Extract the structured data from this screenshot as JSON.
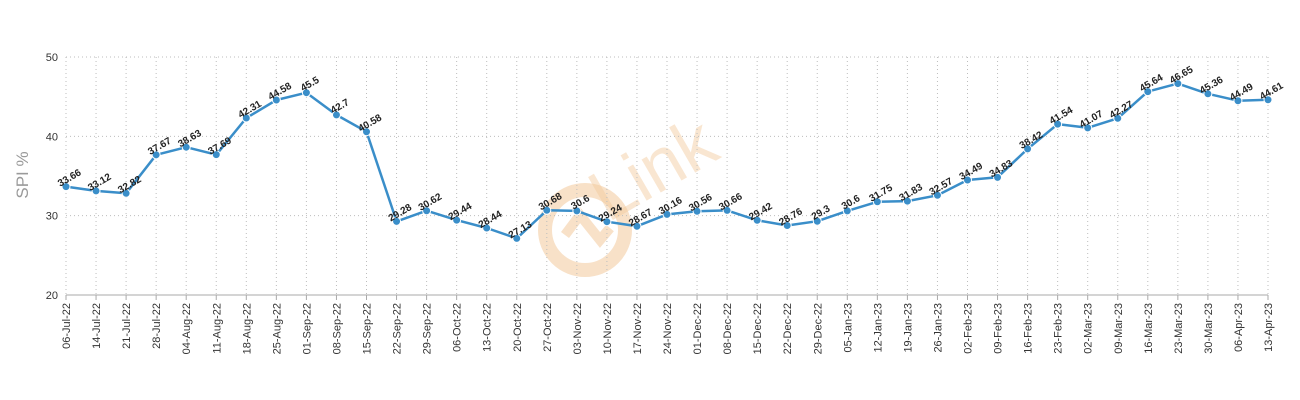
{
  "chart_data": {
    "type": "line",
    "title": "",
    "xlabel": "",
    "ylabel": "SPI %",
    "ylim": [
      20,
      50
    ],
    "yticks": [
      20,
      30,
      40,
      50
    ],
    "grid": "vertical dotted + horizontal dotted",
    "legend": "none",
    "series_color": "#3a8ec9",
    "categories": [
      "06-Jul-22",
      "14-Jul-22",
      "21-Jul-22",
      "28-Jul-22",
      "04-Aug-22",
      "11-Aug-22",
      "18-Aug-22",
      "25-Aug-22",
      "01-Sep-22",
      "08-Sep-22",
      "15-Sep-22",
      "22-Sep-22",
      "29-Sep-22",
      "06-Oct-22",
      "13-Oct-22",
      "20-Oct-22",
      "27-Oct-22",
      "03-Nov-22",
      "10-Nov-22",
      "17-Nov-22",
      "24-Nov-22",
      "01-Dec-22",
      "08-Dec-22",
      "15-Dec-22",
      "22-Dec-22",
      "29-Dec-22",
      "05-Jan-23",
      "12-Jan-23",
      "19-Jan-23",
      "26-Jan-23",
      "02-Feb-23",
      "09-Feb-23",
      "16-Feb-23",
      "23-Feb-23",
      "02-Mar-23",
      "09-Mar-23",
      "16-Mar-23",
      "23-Mar-23",
      "30-Mar-23",
      "06-Apr-23",
      "13-Apr-23"
    ],
    "values": [
      33.66,
      33.12,
      32.82,
      37.67,
      38.63,
      37.69,
      42.31,
      44.58,
      45.5,
      42.7,
      40.58,
      29.28,
      30.62,
      29.44,
      28.44,
      27.13,
      30.68,
      30.6,
      29.24,
      28.67,
      30.16,
      30.56,
      30.66,
      29.42,
      28.76,
      29.3,
      30.6,
      31.75,
      31.83,
      32.57,
      34.49,
      34.83,
      38.42,
      41.54,
      41.07,
      42.27,
      45.64,
      46.65,
      45.36,
      44.49,
      44.61
    ],
    "data_labels": [
      "33.66",
      "33.12",
      "32.82",
      "37.67",
      "38.63",
      "37.69",
      "42.31",
      "44.58",
      "45.5",
      "42.7",
      "40.58",
      "29.28",
      "30.62",
      "29.44",
      "28.44",
      "27.13",
      "30.68",
      "30.6",
      "29.24",
      "28.67",
      "30.16",
      "30.56",
      "30.66",
      "29.42",
      "28.76",
      "29.3",
      "30.6",
      "31.75",
      "31.83",
      "32.57",
      "34.49",
      "34.83",
      "38.42",
      "41.54",
      "41.07",
      "42.27",
      "45.64",
      "46.65",
      "45.36",
      "44.49",
      "44.61"
    ]
  },
  "watermark": {
    "text": "Link",
    "color": "#f3c99a"
  }
}
